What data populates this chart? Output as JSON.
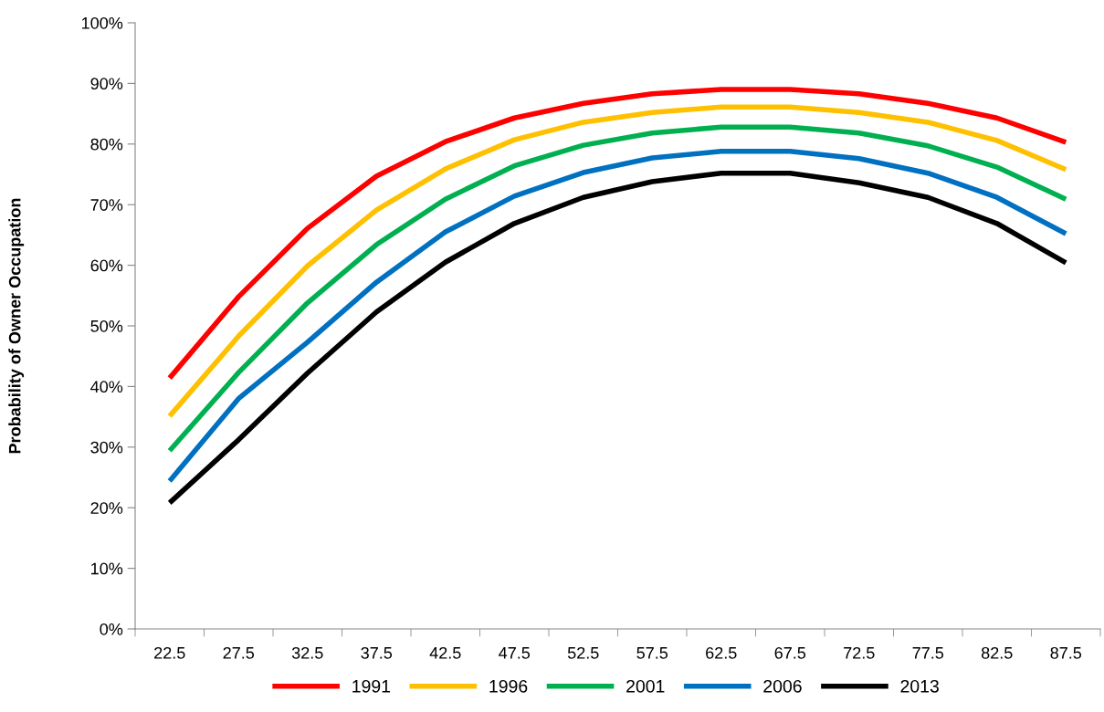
{
  "chart_data": {
    "type": "line",
    "ylabel": "Probability of Owner Occupation",
    "categories": [
      "22.5",
      "27.5",
      "32.5",
      "37.5",
      "42.5",
      "47.5",
      "52.5",
      "57.5",
      "62.5",
      "67.5",
      "72.5",
      "77.5",
      "82.5",
      "87.5"
    ],
    "series": [
      {
        "name": "1991",
        "color": "#ff0000",
        "values": [
          41.4,
          54.8,
          66.1,
          74.7,
          80.4,
          84.3,
          86.7,
          88.3,
          89.0,
          89.0,
          88.3,
          86.7,
          84.3,
          80.3
        ]
      },
      {
        "name": "1996",
        "color": "#ffc000",
        "values": [
          35.1,
          48.3,
          59.9,
          69.1,
          75.9,
          80.7,
          83.6,
          85.2,
          86.1,
          86.1,
          85.2,
          83.6,
          80.6,
          75.8
        ]
      },
      {
        "name": "2001",
        "color": "#00b050",
        "values": [
          29.4,
          42.3,
          53.8,
          63.4,
          70.9,
          76.4,
          79.8,
          81.8,
          82.8,
          82.8,
          81.8,
          79.7,
          76.2,
          70.9
        ]
      },
      {
        "name": "2006",
        "color": "#0070c0",
        "values": [
          24.4,
          38.0,
          47.3,
          57.2,
          65.5,
          71.4,
          75.3,
          77.7,
          78.8,
          78.8,
          77.6,
          75.2,
          71.2,
          65.2
        ]
      },
      {
        "name": "2013",
        "color": "#000000",
        "values": [
          20.8,
          31.2,
          42.2,
          52.3,
          60.5,
          66.9,
          71.2,
          73.8,
          75.2,
          75.2,
          73.6,
          71.2,
          66.9,
          60.4
        ]
      }
    ],
    "ylim": [
      0,
      100
    ],
    "yticks": [
      {
        "value": 0,
        "label": "0%"
      },
      {
        "value": 10,
        "label": "10%"
      },
      {
        "value": 20,
        "label": "20%"
      },
      {
        "value": 30,
        "label": "30%"
      },
      {
        "value": 40,
        "label": "40%"
      },
      {
        "value": 50,
        "label": "50%"
      },
      {
        "value": 60,
        "label": "60%"
      },
      {
        "value": 70,
        "label": "70%"
      },
      {
        "value": 80,
        "label": "80%"
      },
      {
        "value": 90,
        "label": "90%"
      },
      {
        "value": 100,
        "label": "100%"
      }
    ],
    "grid": false,
    "legend": "bottom",
    "marker": "none",
    "line_style": "solid"
  }
}
